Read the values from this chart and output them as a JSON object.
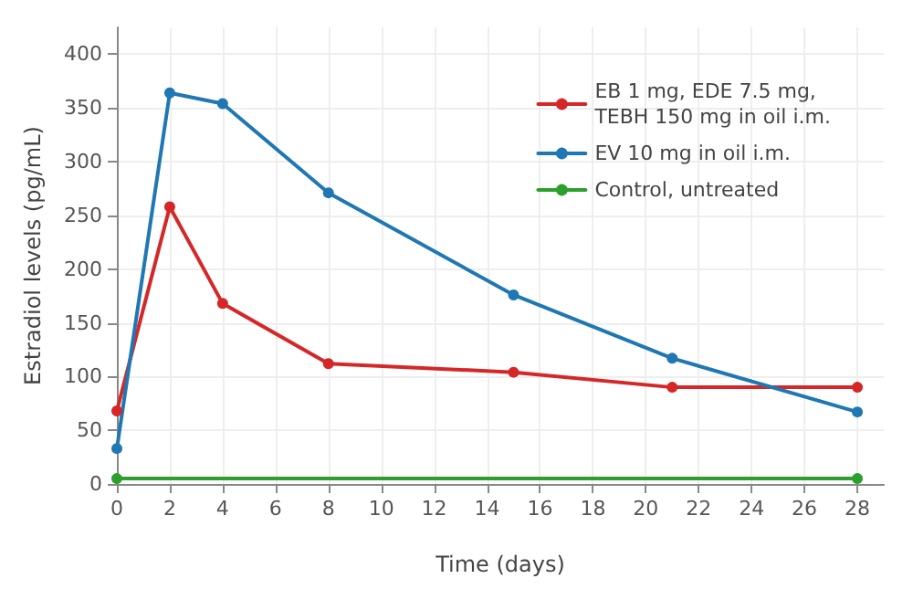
{
  "chart_data": {
    "type": "line",
    "xlabel": "Time (days)",
    "ylabel": "Estradiol levels (pg/mL)",
    "xlim": [
      0,
      29
    ],
    "xticks": [
      0,
      2,
      4,
      6,
      8,
      10,
      12,
      14,
      16,
      18,
      20,
      22,
      24,
      26,
      28
    ],
    "ylim": [
      0,
      425
    ],
    "yticks": [
      0,
      50,
      100,
      150,
      200,
      250,
      300,
      350,
      400
    ],
    "grid": true,
    "legend": "top right",
    "marker": "circle",
    "line_style": "solid",
    "series": [
      {
        "name": "EB 1 mg, EDE 7.5 mg,\nTEBH 150 mg in oil i.m.",
        "color": "#d62728",
        "x": [
          0,
          2,
          4,
          8,
          15,
          21,
          28
        ],
        "values": [
          68,
          258,
          168,
          112,
          104,
          90,
          90
        ]
      },
      {
        "name": "EV 10 mg in oil i.m.",
        "color": "#1f77b4",
        "x": [
          0,
          2,
          4,
          8,
          15,
          21,
          28
        ],
        "values": [
          33,
          364,
          354,
          271,
          176,
          117,
          67
        ]
      },
      {
        "name": "Control, untreated",
        "color": "#2ca02c",
        "x": [
          0,
          28
        ],
        "values": [
          5,
          5
        ]
      }
    ]
  }
}
